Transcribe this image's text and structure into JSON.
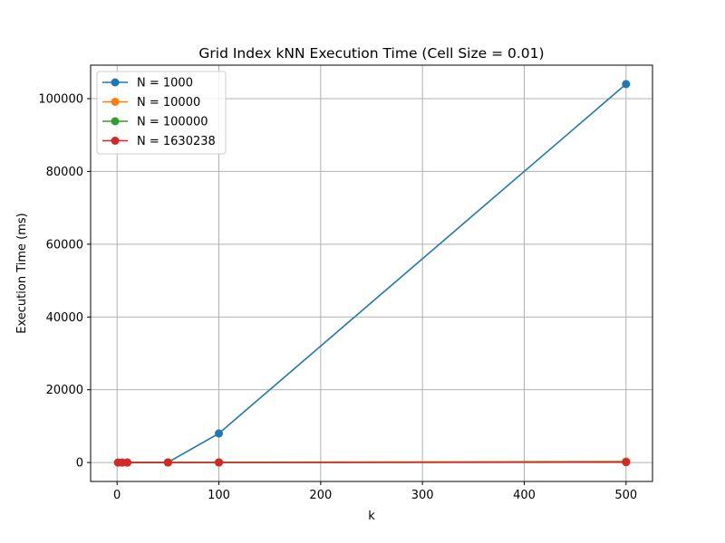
{
  "chart_data": {
    "type": "line",
    "title": "Grid Index kNN Execution Time (Cell Size = 0.01)",
    "xlabel": "k",
    "ylabel": "Execution Time (ms)",
    "xlim": [
      -26,
      526
    ],
    "ylim": [
      -5200,
      109200
    ],
    "xticks": [
      0,
      100,
      200,
      300,
      400,
      500
    ],
    "yticks": [
      0,
      20000,
      40000,
      60000,
      80000,
      100000
    ],
    "grid": true,
    "legend_position": "upper-left",
    "x": [
      1,
      5,
      10,
      50,
      100,
      500
    ],
    "series": [
      {
        "name": "N = 1000",
        "color": "#1f77b4",
        "values": [
          1,
          2,
          5,
          60,
          8000,
          104000
        ]
      },
      {
        "name": "N = 10000",
        "color": "#ff7f0e",
        "values": [
          1,
          2,
          3,
          20,
          60,
          300
        ]
      },
      {
        "name": "N = 100000",
        "color": "#2ca02c",
        "values": [
          1,
          1,
          2,
          10,
          30,
          150
        ]
      },
      {
        "name": "N = 1630238",
        "color": "#d62728",
        "values": [
          1,
          1,
          2,
          8,
          20,
          100
        ]
      }
    ]
  }
}
